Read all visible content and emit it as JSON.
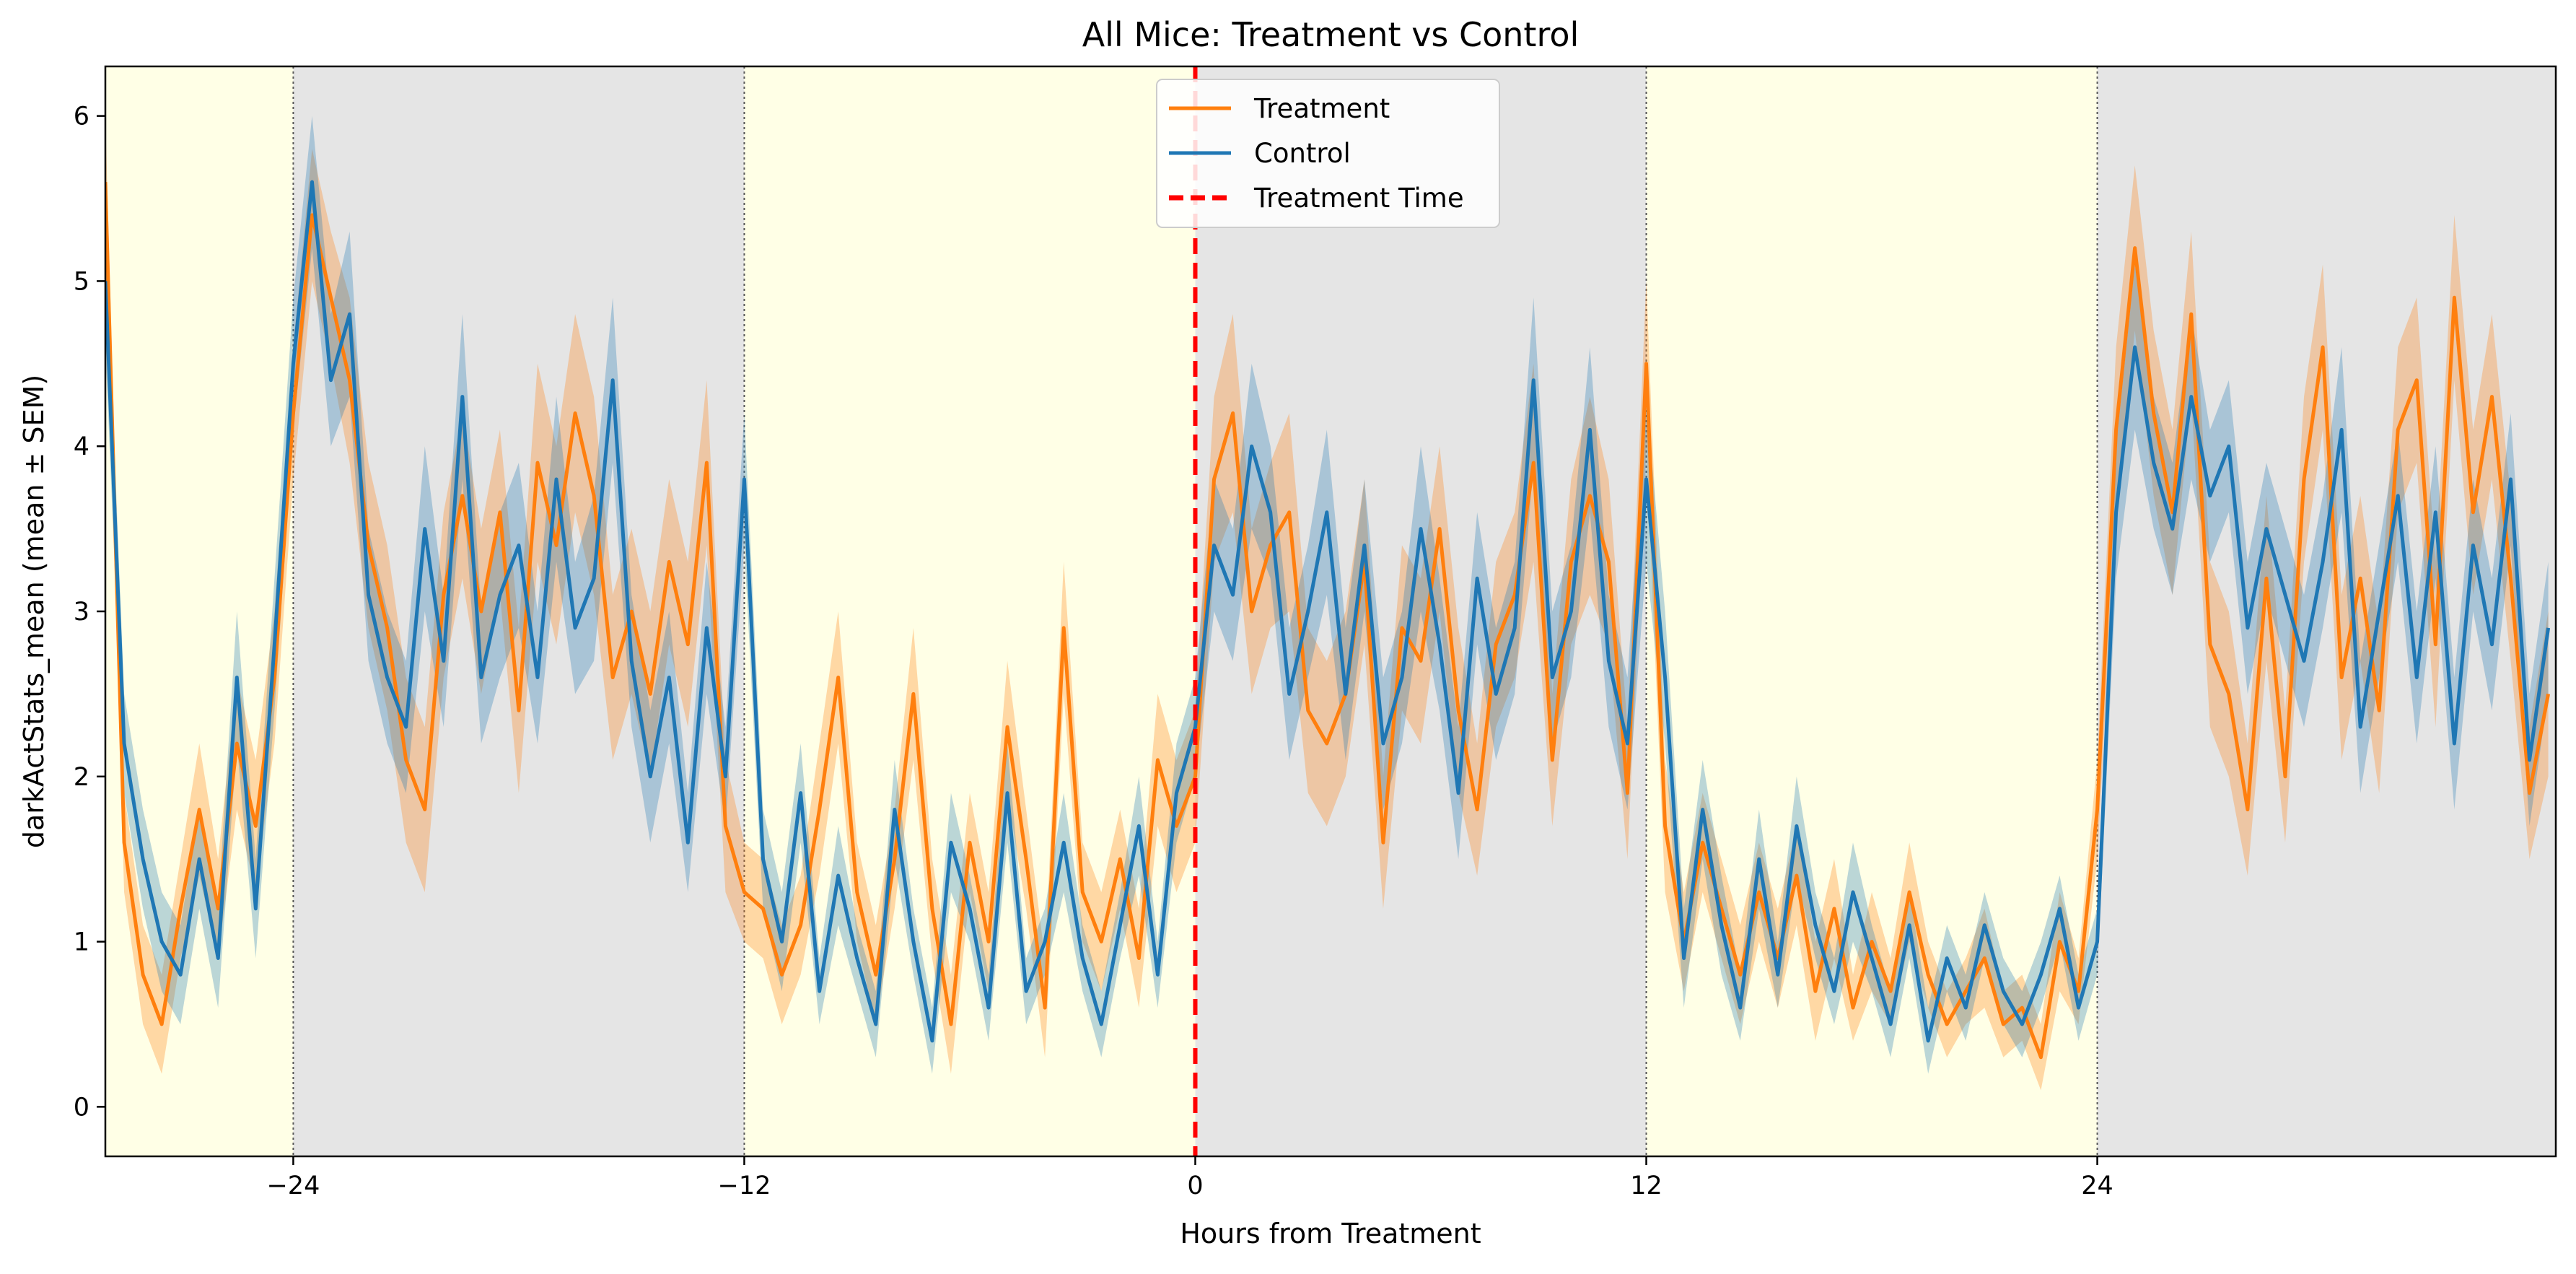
{
  "chart_data": {
    "type": "line",
    "title": "All Mice: Treatment vs Control",
    "xlabel": "Hours from Treatment",
    "ylabel": "darkActStats_mean (mean ± SEM)",
    "xlim": [
      -29,
      36.2
    ],
    "ylim": [
      -0.3,
      6.3
    ],
    "xticks": [
      -24,
      -12,
      0,
      12,
      24
    ],
    "xtick_labels": [
      "−24",
      "−12",
      "0",
      "12",
      "24"
    ],
    "yticks": [
      0,
      1,
      2,
      3,
      4,
      5,
      6
    ],
    "ytick_labels": [
      "0",
      "1",
      "2",
      "3",
      "4",
      "5",
      "6"
    ],
    "grid": false,
    "legend_position": "top-center",
    "background_bands": [
      {
        "phase": "light",
        "x0": -29,
        "x1": -24,
        "color": "#ffffe6"
      },
      {
        "phase": "dark",
        "x0": -24,
        "x1": -12,
        "color": "#e5e5e5"
      },
      {
        "phase": "light",
        "x0": -12,
        "x1": 0,
        "color": "#ffffe6"
      },
      {
        "phase": "dark",
        "x0": 0,
        "x1": 12,
        "color": "#e5e5e5"
      },
      {
        "phase": "light",
        "x0": 12,
        "x1": 24,
        "color": "#ffffe6"
      },
      {
        "phase": "dark",
        "x0": 24,
        "x1": 36.2,
        "color": "#e5e5e5"
      }
    ],
    "treatment_time": 0,
    "series": [
      {
        "name": "Treatment",
        "color": "#ff7f0e",
        "x": [
          -29,
          -28.5,
          -28,
          -27.5,
          -27,
          -26.5,
          -26,
          -25.5,
          -25,
          -24.5,
          -24,
          -23.5,
          -23,
          -22.5,
          -22,
          -21.5,
          -21,
          -20.5,
          -20,
          -19.5,
          -19,
          -18.5,
          -18,
          -17.5,
          -17,
          -16.5,
          -16,
          -15.5,
          -15,
          -14.5,
          -14,
          -13.5,
          -13,
          -12.5,
          -12,
          -11.5,
          -11,
          -10.5,
          -10,
          -9.5,
          -9,
          -8.5,
          -8,
          -7.5,
          -7,
          -6.5,
          -6,
          -5.5,
          -5,
          -4.5,
          -4,
          -3.5,
          -3,
          -2.5,
          -2,
          -1.5,
          -1,
          -0.5,
          0,
          0.5,
          1,
          1.5,
          2,
          2.5,
          3,
          3.5,
          4,
          4.5,
          5,
          5.5,
          6,
          6.5,
          7,
          7.5,
          8,
          8.5,
          9,
          9.5,
          10,
          10.5,
          11,
          11.5,
          12,
          12.5,
          13,
          13.5,
          14,
          14.5,
          15,
          15.5,
          16,
          16.5,
          17,
          17.5,
          18,
          18.5,
          19,
          19.5,
          20,
          20.5,
          21,
          21.5,
          22,
          22.5,
          23,
          23.5,
          24,
          24.5,
          25,
          25.5,
          26,
          26.5,
          27,
          27.5,
          28,
          28.5,
          29,
          29.5,
          30,
          30.5,
          31,
          31.5,
          32,
          32.5,
          33,
          33.5,
          34,
          34.5,
          35,
          35.5,
          36
        ],
        "mean": [
          5.6,
          1.6,
          0.8,
          0.5,
          1.2,
          1.8,
          1.2,
          2.2,
          1.7,
          2.6,
          4.2,
          5.4,
          4.9,
          4.4,
          3.4,
          2.9,
          2.1,
          1.8,
          3.1,
          3.7,
          3.0,
          3.6,
          2.4,
          3.9,
          3.4,
          4.2,
          3.7,
          2.6,
          3.0,
          2.5,
          3.3,
          2.8,
          3.9,
          1.7,
          1.3,
          1.2,
          0.8,
          1.1,
          1.8,
          2.6,
          1.3,
          0.8,
          1.5,
          2.5,
          1.2,
          0.5,
          1.6,
          1.0,
          2.3,
          1.5,
          0.6,
          2.9,
          1.3,
          1.0,
          1.5,
          0.9,
          2.1,
          1.7,
          2.0,
          3.8,
          4.2,
          3.0,
          3.4,
          3.6,
          2.4,
          2.2,
          2.5,
          3.3,
          1.6,
          2.9,
          2.7,
          3.5,
          2.4,
          1.8,
          2.8,
          3.1,
          3.9,
          2.1,
          3.3,
          3.7,
          3.3,
          1.9,
          4.5,
          1.7,
          1.0,
          1.6,
          1.2,
          0.8,
          1.3,
          0.9,
          1.4,
          0.7,
          1.2,
          0.6,
          1.0,
          0.7,
          1.3,
          0.8,
          0.5,
          0.7,
          0.9,
          0.5,
          0.6,
          0.3,
          1.0,
          0.7,
          1.8,
          4.1,
          5.2,
          4.2,
          3.6,
          4.8,
          2.8,
          2.5,
          1.8,
          3.2,
          2.0,
          3.8,
          4.6,
          2.6,
          3.2,
          2.4,
          4.1,
          4.4,
          2.8,
          4.9,
          3.6,
          4.3,
          3.2,
          1.9,
          2.5
        ],
        "sem": [
          0.4,
          0.3,
          0.3,
          0.3,
          0.3,
          0.4,
          0.3,
          0.4,
          0.4,
          0.4,
          0.4,
          0.4,
          0.4,
          0.5,
          0.5,
          0.5,
          0.5,
          0.5,
          0.5,
          0.5,
          0.5,
          0.5,
          0.5,
          0.6,
          0.6,
          0.6,
          0.6,
          0.5,
          0.5,
          0.5,
          0.5,
          0.5,
          0.5,
          0.4,
          0.3,
          0.3,
          0.3,
          0.3,
          0.4,
          0.4,
          0.3,
          0.3,
          0.3,
          0.4,
          0.3,
          0.3,
          0.3,
          0.3,
          0.4,
          0.3,
          0.3,
          0.4,
          0.3,
          0.3,
          0.3,
          0.3,
          0.4,
          0.4,
          0.4,
          0.5,
          0.6,
          0.5,
          0.5,
          0.6,
          0.5,
          0.5,
          0.5,
          0.5,
          0.4,
          0.5,
          0.5,
          0.5,
          0.5,
          0.4,
          0.5,
          0.5,
          0.6,
          0.4,
          0.5,
          0.6,
          0.5,
          0.4,
          0.5,
          0.4,
          0.3,
          0.3,
          0.3,
          0.3,
          0.3,
          0.3,
          0.3,
          0.3,
          0.3,
          0.2,
          0.3,
          0.2,
          0.3,
          0.2,
          0.2,
          0.2,
          0.3,
          0.2,
          0.2,
          0.2,
          0.3,
          0.2,
          0.3,
          0.5,
          0.5,
          0.5,
          0.5,
          0.5,
          0.5,
          0.5,
          0.4,
          0.5,
          0.4,
          0.5,
          0.5,
          0.5,
          0.5,
          0.5,
          0.5,
          0.5,
          0.5,
          0.5,
          0.5,
          0.5,
          0.5,
          0.4,
          0.5
        ]
      },
      {
        "name": "Control",
        "color": "#1f77b4",
        "x": [
          -29,
          -28.5,
          -28,
          -27.5,
          -27,
          -26.5,
          -26,
          -25.5,
          -25,
          -24.5,
          -24,
          -23.5,
          -23,
          -22.5,
          -22,
          -21.5,
          -21,
          -20.5,
          -20,
          -19.5,
          -19,
          -18.5,
          -18,
          -17.5,
          -17,
          -16.5,
          -16,
          -15.5,
          -15,
          -14.5,
          -14,
          -13.5,
          -13,
          -12.5,
          -12,
          -11.5,
          -11,
          -10.5,
          -10,
          -9.5,
          -9,
          -8.5,
          -8,
          -7.5,
          -7,
          -6.5,
          -6,
          -5.5,
          -5,
          -4.5,
          -4,
          -3.5,
          -3,
          -2.5,
          -2,
          -1.5,
          -1,
          -0.5,
          0,
          0.5,
          1,
          1.5,
          2,
          2.5,
          3,
          3.5,
          4,
          4.5,
          5,
          5.5,
          6,
          6.5,
          7,
          7.5,
          8,
          8.5,
          9,
          9.5,
          10,
          10.5,
          11,
          11.5,
          12,
          12.5,
          13,
          13.5,
          14,
          14.5,
          15,
          15.5,
          16,
          16.5,
          17,
          17.5,
          18,
          18.5,
          19,
          19.5,
          20,
          20.5,
          21,
          21.5,
          22,
          22.5,
          23,
          23.5,
          24,
          24.5,
          25,
          25.5,
          26,
          26.5,
          27,
          27.5,
          28,
          28.5,
          29,
          29.5,
          30,
          30.5,
          31,
          31.5,
          32,
          32.5,
          33,
          33.5,
          34,
          34.5,
          35,
          35.5,
          36
        ],
        "mean": [
          5.0,
          2.2,
          1.5,
          1.0,
          0.8,
          1.5,
          0.9,
          2.6,
          1.2,
          2.8,
          4.5,
          5.6,
          4.4,
          4.8,
          3.1,
          2.6,
          2.3,
          3.5,
          2.7,
          4.3,
          2.6,
          3.1,
          3.4,
          2.6,
          3.8,
          2.9,
          3.2,
          4.4,
          2.7,
          2.0,
          2.6,
          1.6,
          2.9,
          2.0,
          3.8,
          1.5,
          1.0,
          1.9,
          0.7,
          1.4,
          0.9,
          0.5,
          1.8,
          1.0,
          0.4,
          1.6,
          1.2,
          0.6,
          1.9,
          0.7,
          1.0,
          1.6,
          0.9,
          0.5,
          1.1,
          1.7,
          0.8,
          1.9,
          2.3,
          3.4,
          3.1,
          4.0,
          3.6,
          2.5,
          3.0,
          3.6,
          2.5,
          3.4,
          2.2,
          2.6,
          3.5,
          2.8,
          1.9,
          3.2,
          2.5,
          2.9,
          4.4,
          2.6,
          3.0,
          4.1,
          2.7,
          2.2,
          3.8,
          2.6,
          0.9,
          1.8,
          1.1,
          0.6,
          1.5,
          0.8,
          1.7,
          1.1,
          0.7,
          1.3,
          0.9,
          0.5,
          1.1,
          0.4,
          0.9,
          0.6,
          1.1,
          0.7,
          0.5,
          0.8,
          1.2,
          0.6,
          1.0,
          3.6,
          4.6,
          3.9,
          3.5,
          4.3,
          3.7,
          4.0,
          2.9,
          3.5,
          3.1,
          2.7,
          3.3,
          4.1,
          2.3,
          3.0,
          3.7,
          2.6,
          3.6,
          2.2,
          3.4,
          2.8,
          3.8,
          2.1,
          2.9
        ],
        "sem": [
          0.4,
          0.3,
          0.3,
          0.3,
          0.3,
          0.3,
          0.3,
          0.4,
          0.3,
          0.4,
          0.4,
          0.4,
          0.4,
          0.5,
          0.4,
          0.4,
          0.4,
          0.5,
          0.4,
          0.5,
          0.4,
          0.5,
          0.5,
          0.4,
          0.5,
          0.4,
          0.5,
          0.5,
          0.4,
          0.4,
          0.4,
          0.3,
          0.4,
          0.3,
          0.4,
          0.3,
          0.3,
          0.3,
          0.2,
          0.3,
          0.2,
          0.2,
          0.3,
          0.2,
          0.2,
          0.3,
          0.2,
          0.2,
          0.3,
          0.2,
          0.2,
          0.3,
          0.2,
          0.2,
          0.2,
          0.3,
          0.2,
          0.3,
          0.3,
          0.4,
          0.4,
          0.5,
          0.4,
          0.4,
          0.4,
          0.5,
          0.4,
          0.4,
          0.4,
          0.4,
          0.5,
          0.4,
          0.4,
          0.4,
          0.4,
          0.4,
          0.5,
          0.4,
          0.4,
          0.5,
          0.4,
          0.4,
          0.5,
          0.4,
          0.3,
          0.3,
          0.3,
          0.2,
          0.3,
          0.2,
          0.3,
          0.2,
          0.2,
          0.3,
          0.2,
          0.2,
          0.2,
          0.2,
          0.2,
          0.2,
          0.2,
          0.2,
          0.2,
          0.2,
          0.2,
          0.2,
          0.2,
          0.4,
          0.5,
          0.4,
          0.4,
          0.5,
          0.4,
          0.4,
          0.4,
          0.4,
          0.4,
          0.4,
          0.4,
          0.5,
          0.4,
          0.4,
          0.4,
          0.4,
          0.4,
          0.4,
          0.4,
          0.4,
          0.4,
          0.4,
          0.4
        ]
      }
    ],
    "legend": [
      {
        "label": "Treatment",
        "color": "#ff7f0e",
        "style": "solid"
      },
      {
        "label": "Control",
        "color": "#1f77b4",
        "style": "solid"
      },
      {
        "label": "Treatment Time",
        "color": "#ff0000",
        "style": "dashed"
      }
    ]
  }
}
